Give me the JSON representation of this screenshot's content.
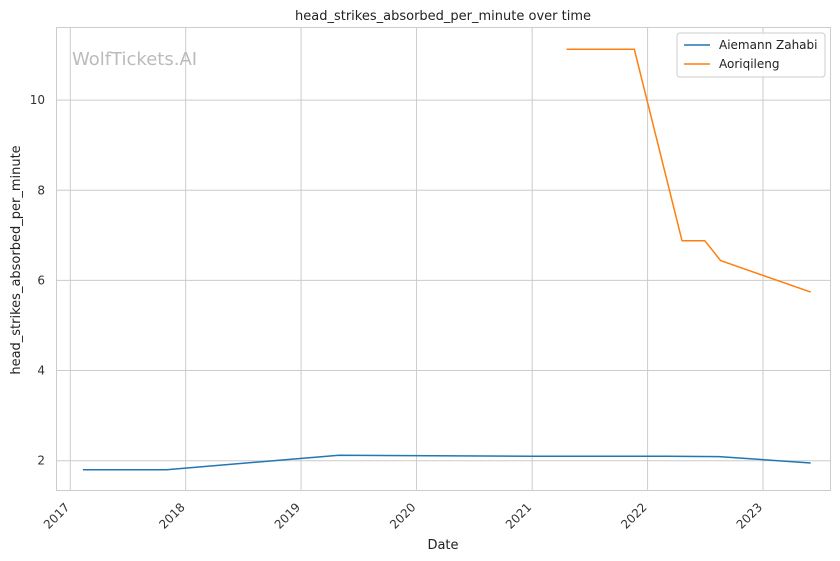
{
  "watermark": "WolfTickets.AI",
  "chart_data": {
    "type": "line",
    "title": "head_strikes_absorbed_per_minute over time",
    "xlabel": "Date",
    "ylabel": "head_strikes_absorbed_per_minute",
    "x_ticks": [
      "2017",
      "2018",
      "2019",
      "2020",
      "2021",
      "2022",
      "2023"
    ],
    "y_ticks": [
      2,
      4,
      6,
      8,
      10
    ],
    "xlim": [
      "2016-11-20",
      "2023-08-01"
    ],
    "ylim": [
      1.35,
      11.6
    ],
    "grid": true,
    "legend_position": "top-right",
    "series": [
      {
        "name": "Aiemann Zahabi",
        "color": "#1f77b4",
        "points": [
          [
            "2017-02-10",
            1.8
          ],
          [
            "2017-11-01",
            1.8
          ],
          [
            "2019-05-01",
            2.12
          ],
          [
            "2021-01-01",
            2.1
          ],
          [
            "2022-03-01",
            2.1
          ],
          [
            "2022-08-15",
            2.09
          ],
          [
            "2023-06-01",
            1.95
          ]
        ]
      },
      {
        "name": "Aoriqileng",
        "color": "#ff7f0e",
        "points": [
          [
            "2021-04-20",
            11.13
          ],
          [
            "2021-11-20",
            11.13
          ],
          [
            "2022-04-20",
            6.88
          ],
          [
            "2022-07-01",
            6.88
          ],
          [
            "2022-08-20",
            6.44
          ],
          [
            "2023-06-01",
            5.74
          ]
        ]
      }
    ]
  }
}
